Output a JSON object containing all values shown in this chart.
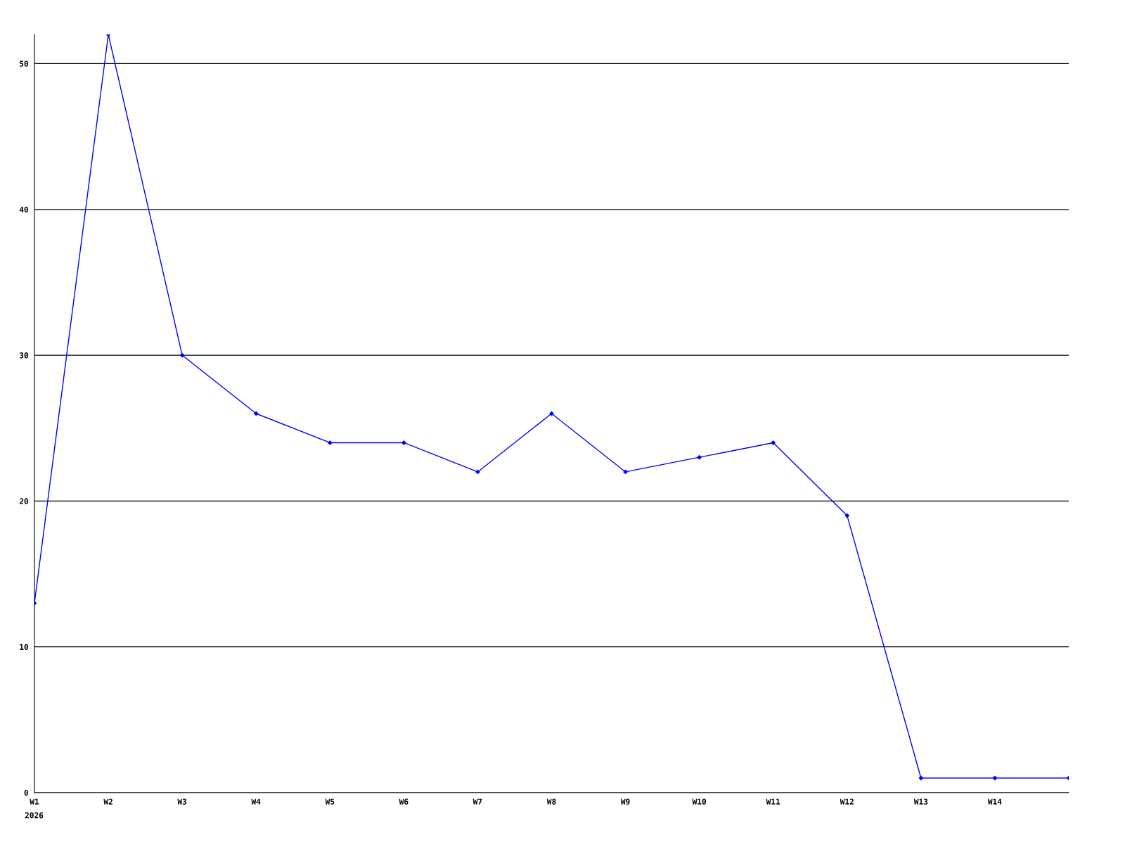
{
  "chart_data": {
    "type": "line",
    "categories": [
      "W1",
      "W2",
      "W3",
      "W4",
      "W5",
      "W6",
      "W7",
      "W8",
      "W9",
      "W10",
      "W11",
      "W12",
      "W13",
      "W14",
      null
    ],
    "series": [
      {
        "color": "#0000ff",
        "values": [
          13,
          52,
          30,
          26,
          24,
          24,
          22,
          26,
          22,
          23,
          24,
          19,
          1,
          1,
          1
        ]
      }
    ],
    "ylim": [
      0,
      52
    ],
    "yticks": [
      0,
      10,
      20,
      30,
      40,
      50
    ],
    "grid": "y",
    "marker": "diamond",
    "line_style": "solid",
    "annotations": [
      "2026"
    ]
  }
}
